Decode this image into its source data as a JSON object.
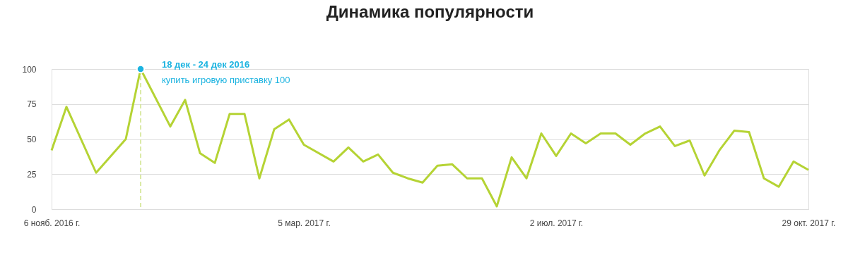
{
  "chart_data": {
    "type": "line",
    "title": "Динамика популярности",
    "x": [
      "2016-11-06",
      "2016-11-13",
      "2016-11-27",
      "2016-12-11",
      "2016-12-18",
      "2017-01-01",
      "2017-01-08",
      "2017-01-15",
      "2017-01-22",
      "2017-01-29",
      "2017-02-05",
      "2017-02-12",
      "2017-02-19",
      "2017-02-26",
      "2017-03-05",
      "2017-03-19",
      "2017-03-26",
      "2017-04-02",
      "2017-04-09",
      "2017-04-16",
      "2017-04-23",
      "2017-04-30",
      "2017-05-07",
      "2017-05-14",
      "2017-05-21",
      "2017-05-28",
      "2017-06-04",
      "2017-06-11",
      "2017-06-18",
      "2017-06-25",
      "2017-07-02",
      "2017-07-09",
      "2017-07-16",
      "2017-07-23",
      "2017-07-30",
      "2017-08-06",
      "2017-08-13",
      "2017-08-20",
      "2017-08-27",
      "2017-09-03",
      "2017-09-10",
      "2017-09-17",
      "2017-09-24",
      "2017-10-01",
      "2017-10-08",
      "2017-10-15",
      "2017-10-22",
      "2017-10-29"
    ],
    "series": [
      {
        "color": "#b5d334",
        "values": [
          42,
          73,
          26,
          50,
          100,
          59,
          78,
          40,
          33,
          68,
          68,
          22,
          57,
          64,
          46,
          34,
          44,
          34,
          39,
          26,
          22,
          19,
          31,
          32,
          22,
          22,
          2,
          37,
          22,
          54,
          38,
          54,
          47,
          54,
          54,
          46,
          54,
          59,
          45,
          49,
          24,
          42,
          56,
          55,
          22,
          16,
          34,
          28
        ]
      }
    ],
    "xlim": [
      "2016-11-06",
      "2017-10-29"
    ],
    "xticks": [
      {
        "value": "2016-11-06",
        "label": "6 нояб. 2016 г."
      },
      {
        "value": "2017-03-05",
        "label": "5 мар. 2017 г."
      },
      {
        "value": "2017-07-02",
        "label": "2 июл. 2017 г."
      },
      {
        "value": "2017-10-29",
        "label": "29 окт. 2017 г."
      }
    ],
    "ylim": [
      0,
      100
    ],
    "yticks": [
      0,
      25,
      50,
      75,
      100
    ],
    "grid": "y",
    "marker": "none",
    "line_style": "solid",
    "ref_lines": [
      {
        "axis": "x",
        "value": "2016-12-18",
        "color": "#cfe38a",
        "line_style": "dashed"
      }
    ],
    "annotations": [
      {
        "text": "18 дек - 24 дек 2016\nкупить игровую приставку   100",
        "x": "2016-12-18",
        "y": 100
      }
    ]
  }
}
